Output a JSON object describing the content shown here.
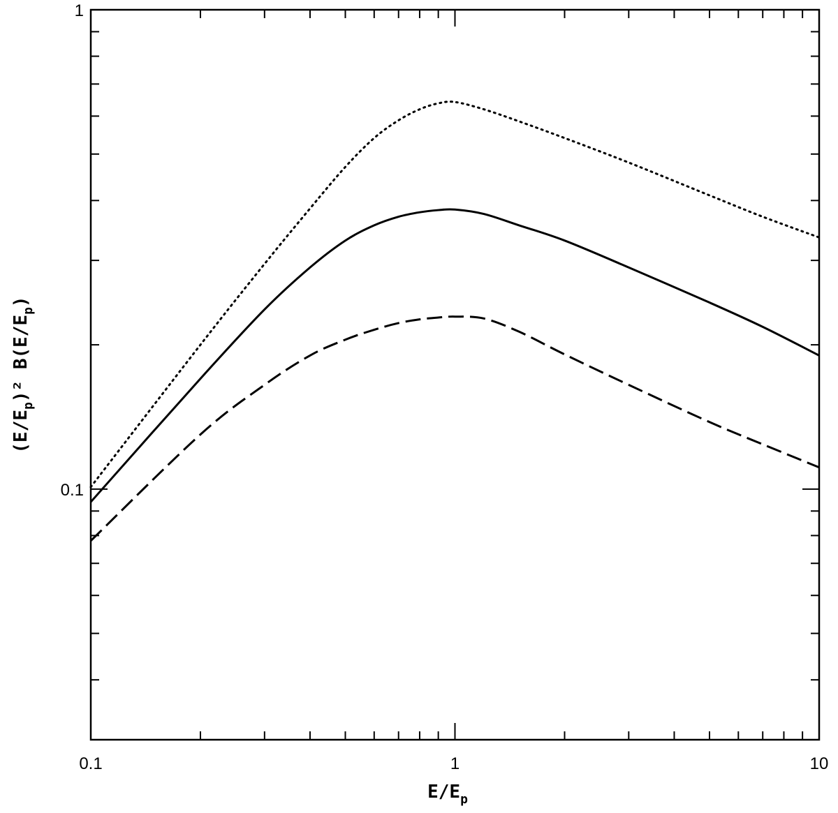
{
  "chart_data": {
    "type": "line",
    "title": "",
    "xscale": "log",
    "yscale": "log",
    "xlim": [
      0.1,
      10
    ],
    "ylim": [
      0.03,
      1
    ],
    "grid": false,
    "xlabel": {
      "main": "E/E",
      "sub": "p"
    },
    "ylabel": {
      "parts": [
        "(E/E",
        "p",
        ")² B(E/E",
        "p",
        ")"
      ]
    },
    "xticks": [
      {
        "value": 0.1,
        "label": "0.1"
      },
      {
        "value": 1,
        "label": "1"
      },
      {
        "value": 10,
        "label": "10"
      }
    ],
    "yticks": [
      {
        "value": 0.1,
        "label": "0.1"
      },
      {
        "value": 1,
        "label": "1"
      }
    ],
    "series": [
      {
        "style": "dotted",
        "color": "#000000",
        "x": [
          0.1,
          0.2,
          0.3,
          0.4,
          0.5,
          0.6,
          0.7,
          0.8,
          0.9,
          1.0,
          1.2,
          1.5,
          2,
          3,
          5,
          7,
          10
        ],
        "y": [
          0.101,
          0.2,
          0.295,
          0.385,
          0.47,
          0.54,
          0.588,
          0.62,
          0.638,
          0.642,
          0.62,
          0.585,
          0.54,
          0.48,
          0.41,
          0.37,
          0.335
        ]
      },
      {
        "style": "solid",
        "color": "#000000",
        "x": [
          0.1,
          0.2,
          0.3,
          0.4,
          0.5,
          0.6,
          0.7,
          0.8,
          0.9,
          1.0,
          1.2,
          1.5,
          2,
          3,
          5,
          7,
          10
        ],
        "y": [
          0.094,
          0.17,
          0.237,
          0.29,
          0.33,
          0.355,
          0.37,
          0.378,
          0.382,
          0.383,
          0.375,
          0.355,
          0.33,
          0.29,
          0.245,
          0.218,
          0.19
        ]
      },
      {
        "style": "dashed",
        "color": "#000000",
        "x": [
          0.1,
          0.2,
          0.3,
          0.4,
          0.5,
          0.6,
          0.7,
          0.8,
          0.9,
          1.0,
          1.2,
          1.5,
          2,
          3,
          5,
          7,
          10
        ],
        "y": [
          0.078,
          0.13,
          0.165,
          0.19,
          0.205,
          0.215,
          0.222,
          0.226,
          0.228,
          0.229,
          0.227,
          0.213,
          0.191,
          0.165,
          0.138,
          0.124,
          0.111
        ]
      }
    ]
  }
}
